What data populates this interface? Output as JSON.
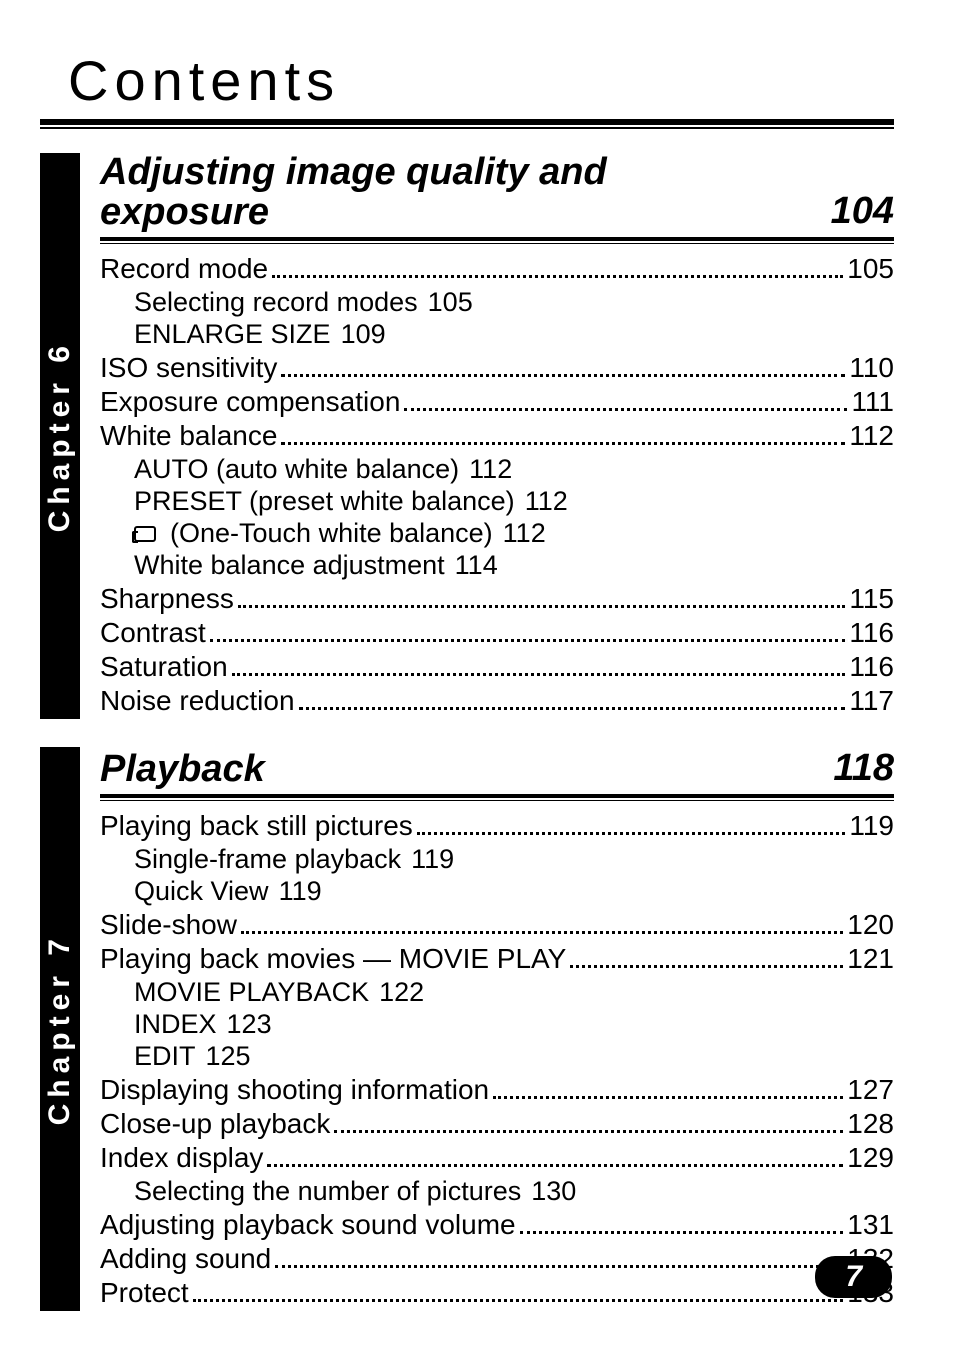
{
  "page": {
    "title": "Contents",
    "page_number": "7",
    "colors": {
      "text": "#000000",
      "bg": "#ffffff",
      "rule": "#000000",
      "badge_bg": "#000000",
      "badge_fg": "#ffffff"
    },
    "typography": {
      "title_fontsize": 56,
      "title_letter_spacing": 6,
      "section_fontsize": 38,
      "entry_fontsize": 28,
      "sub_fontsize": 27,
      "tab_fontsize": 30,
      "badge_fontsize": 30,
      "font_family": "Futura / Century Gothic"
    }
  },
  "chapters": [
    {
      "tab": "Chapter 6",
      "title_lines": [
        "Adjusting image quality and",
        "exposure"
      ],
      "page": "104",
      "entries": [
        {
          "label": "Record mode",
          "page": "105",
          "subs": [
            {
              "label": "Selecting record modes",
              "page": "105"
            },
            {
              "label": "ENLARGE SIZE",
              "page": "109"
            }
          ]
        },
        {
          "label": "ISO sensitivity",
          "page": "110"
        },
        {
          "label": "Exposure compensation",
          "page": "111"
        },
        {
          "label": "White balance",
          "page": "112",
          "subs": [
            {
              "label": "AUTO (auto white balance)",
              "page": "112"
            },
            {
              "label": "PRESET (preset white balance)",
              "page": "112"
            },
            {
              "label": "(One-Touch white balance)",
              "page": "112",
              "icon": "wb"
            },
            {
              "label": "White balance adjustment",
              "page": "114"
            }
          ]
        },
        {
          "label": "Sharpness",
          "page": "115"
        },
        {
          "label": "Contrast",
          "page": "116"
        },
        {
          "label": "Saturation",
          "page": "116"
        },
        {
          "label": "Noise reduction",
          "page": "117"
        }
      ]
    },
    {
      "tab": "Chapter 7",
      "title_lines": [
        "Playback"
      ],
      "page": "118",
      "entries": [
        {
          "label": "Playing back still pictures",
          "page": "119",
          "subs": [
            {
              "label": "Single-frame playback",
              "page": "119"
            },
            {
              "label": "Quick View",
              "page": "119"
            }
          ]
        },
        {
          "label": "Slide-show",
          "page": "120"
        },
        {
          "label": "Playing back movies — MOVIE PLAY",
          "page": "121",
          "subs": [
            {
              "label": "MOVIE PLAYBACK",
              "page": "122"
            },
            {
              "label": "INDEX",
              "page": "123"
            },
            {
              "label": "EDIT",
              "page": "125"
            }
          ]
        },
        {
          "label": "Displaying shooting information",
          "page": "127"
        },
        {
          "label": "Close-up playback",
          "page": "128"
        },
        {
          "label": "Index display",
          "page": "129",
          "subs": [
            {
              "label": "Selecting the number of pictures",
              "page": "130"
            }
          ]
        },
        {
          "label": "Adjusting playback sound volume",
          "page": "131"
        },
        {
          "label": "Adding sound",
          "page": "132"
        },
        {
          "label": "Protect",
          "page": "133"
        }
      ]
    }
  ]
}
